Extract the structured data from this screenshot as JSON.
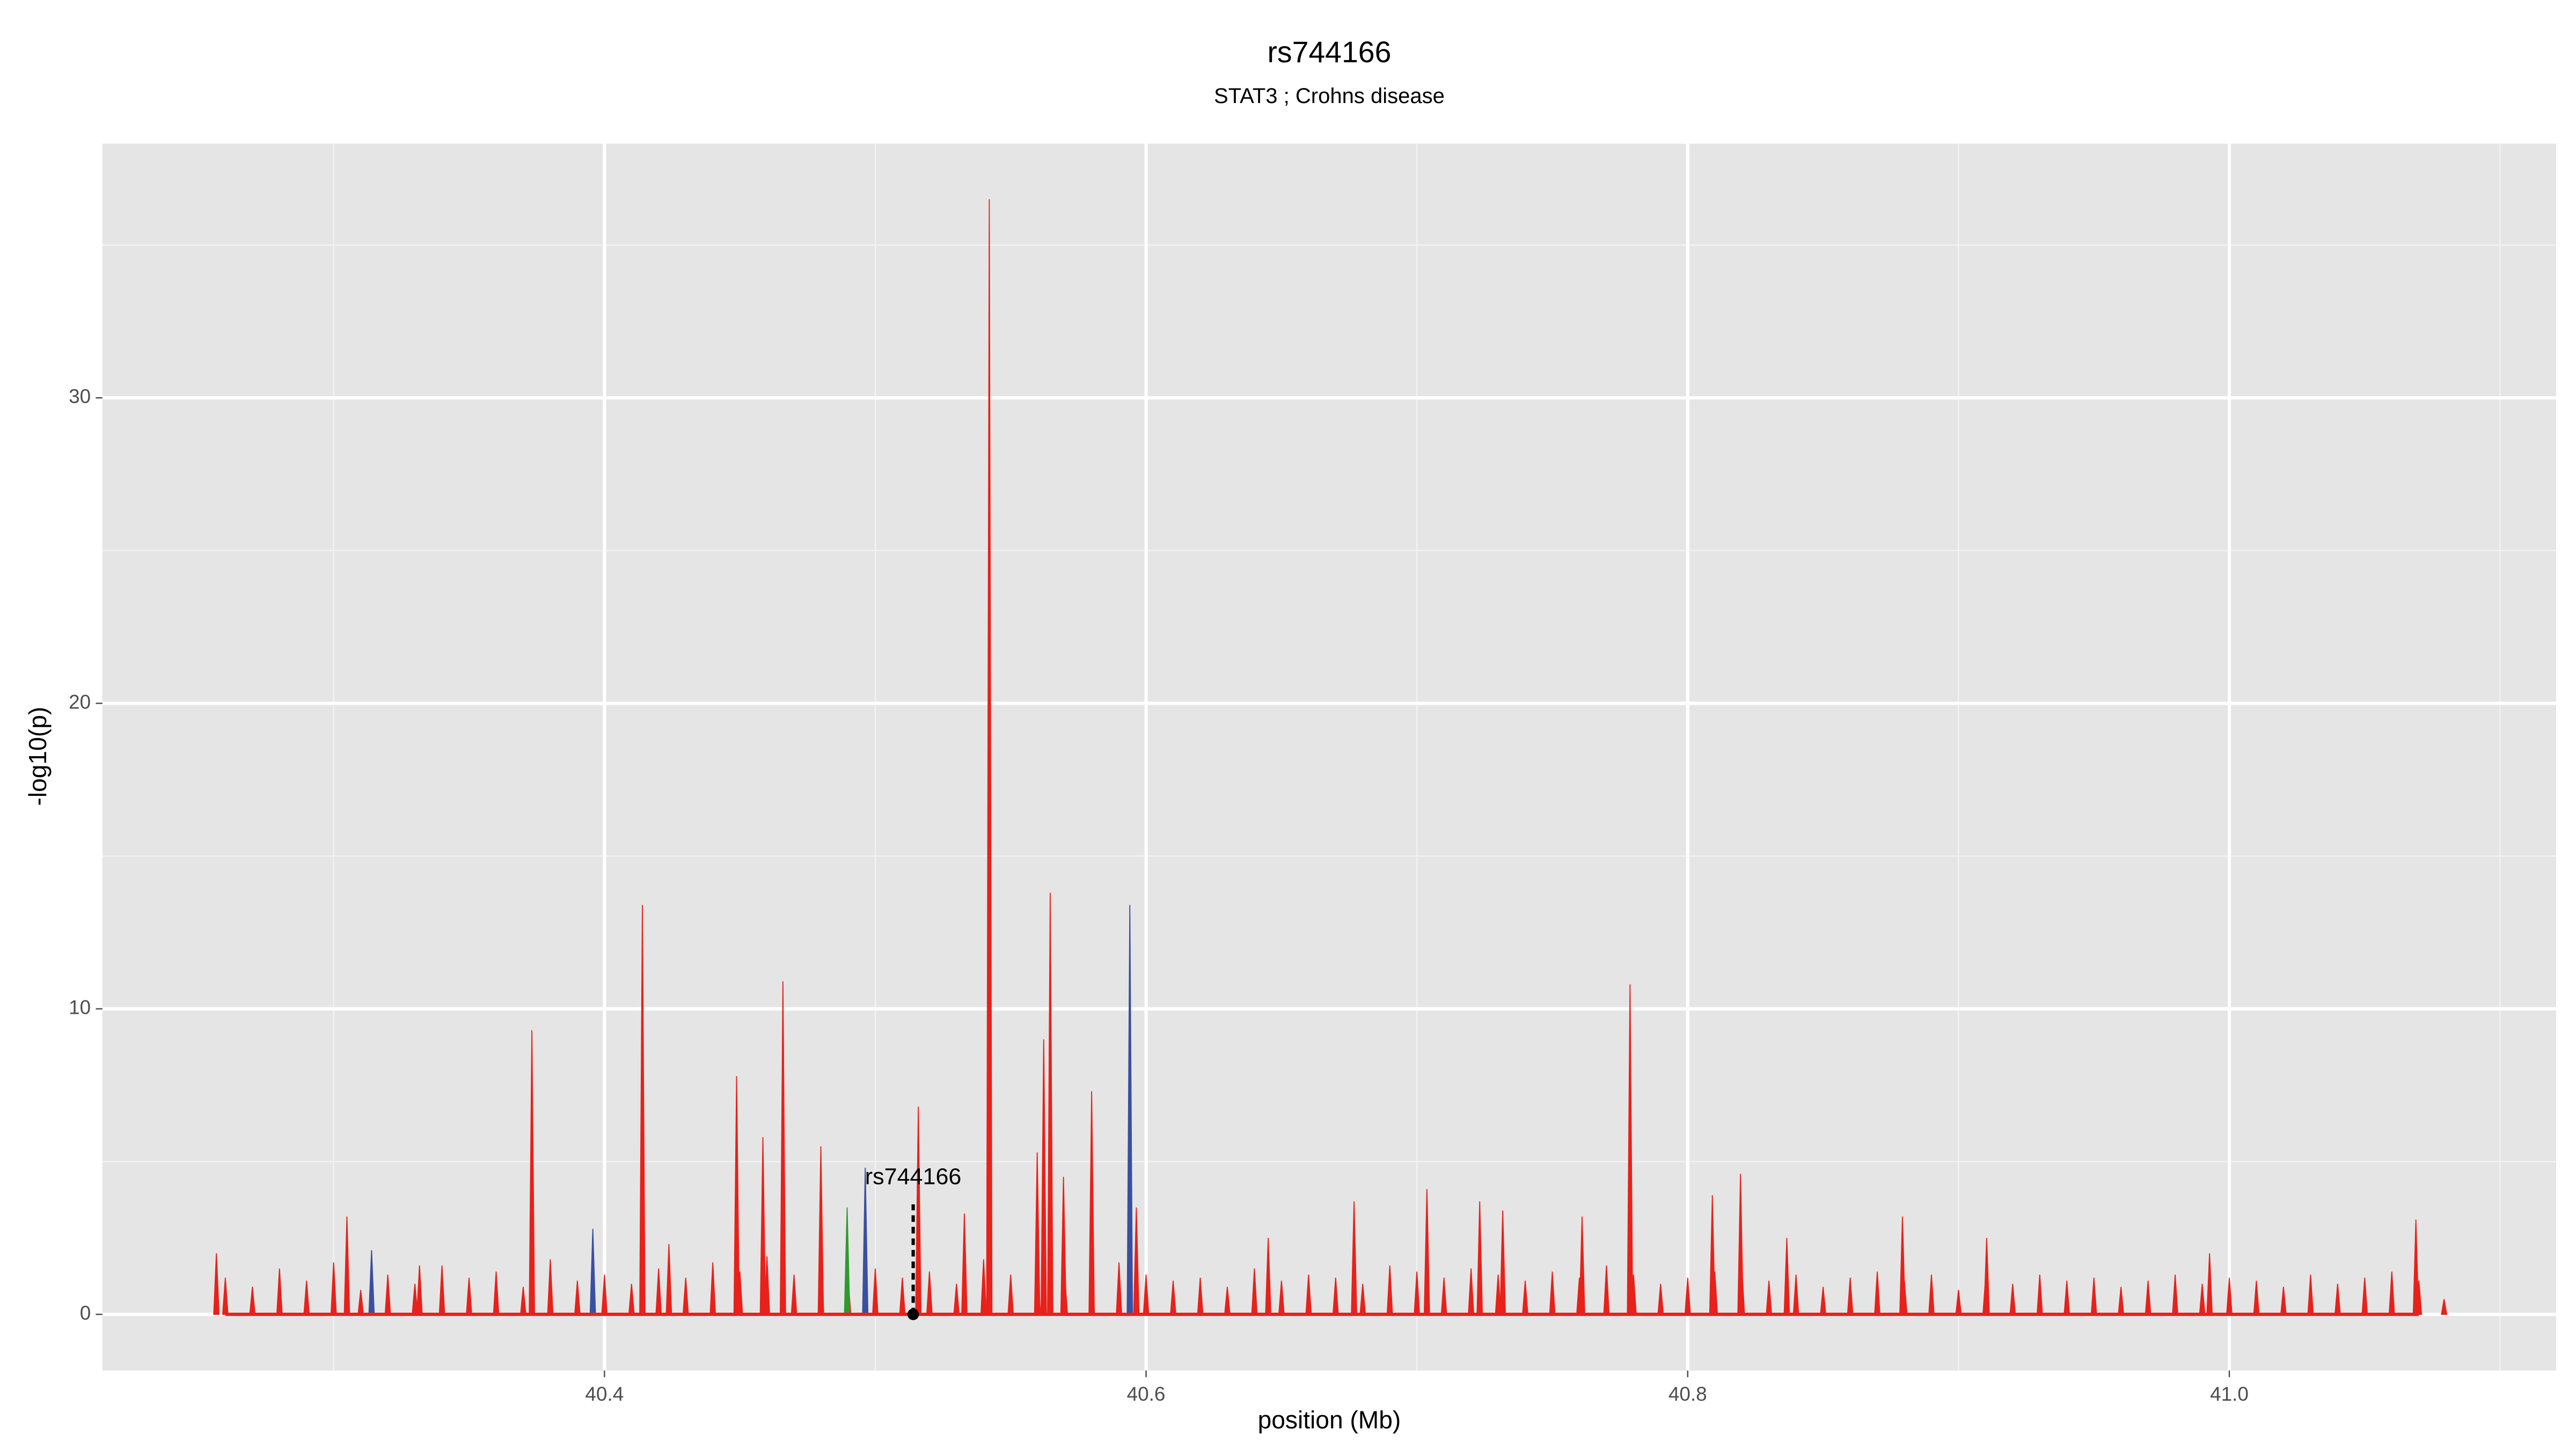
{
  "chart_data": {
    "type": "spike",
    "title": "rs744166",
    "subtitle": "STAT3 ; Crohns disease",
    "xlabel": "position (Mb)",
    "ylabel": "-log10(p)",
    "xlim": [
      40.2146,
      41.1207
    ],
    "ylim": [
      -1.84,
      38.32
    ],
    "xticks": [
      40.4,
      40.6,
      40.8,
      {
        "value": 41,
        "label": "41.0"
      }
    ],
    "yticks": [
      0,
      10,
      20,
      30
    ],
    "xminor": [
      40.3,
      40.5,
      40.7,
      40.9,
      41.1
    ],
    "yminor": [
      5,
      15,
      25,
      35
    ],
    "grid": true,
    "annotation": {
      "text": "rs744166",
      "x": 40.514,
      "y": 3.6
    },
    "series": [
      {
        "color": "#e8211a",
        "x": [
          40.26,
          40.27,
          40.28,
          40.29,
          40.3,
          40.31,
          40.32,
          40.33,
          40.34,
          40.35,
          40.36,
          40.37,
          40.38,
          40.39,
          40.4,
          40.41,
          40.42,
          40.43,
          40.44,
          40.45,
          40.46,
          40.47,
          40.48,
          40.49,
          40.5,
          40.51,
          40.52,
          40.53,
          40.54,
          40.55,
          40.56,
          40.57,
          40.58,
          40.59,
          40.6,
          40.61,
          40.62,
          40.63,
          40.64,
          40.65,
          40.66,
          40.67,
          40.68,
          40.69,
          40.7,
          40.71,
          40.72,
          40.73,
          40.74,
          40.75,
          40.76,
          40.77,
          40.78,
          40.79,
          40.8,
          40.81,
          40.82,
          40.83,
          40.84,
          40.85,
          40.86,
          40.87,
          40.88,
          40.89,
          40.9,
          40.91,
          40.92,
          40.93,
          40.94,
          40.95,
          40.96,
          40.97,
          40.98,
          40.99,
          41.0,
          41.01,
          41.02,
          41.03,
          41.04,
          41.05,
          41.06,
          41.07
        ],
        "values": [
          1.2,
          0.9,
          1.5,
          1.1,
          1.7,
          0.8,
          1.3,
          1.0,
          1.6,
          1.2,
          1.4,
          0.9,
          1.8,
          1.1,
          1.3,
          1.0,
          1.5,
          1.2,
          1.7,
          1.4,
          1.9,
          1.3,
          1.6,
          1.1,
          1.5,
          1.2,
          1.4,
          1.0,
          1.8,
          1.3,
          1.6,
          1.2,
          1.4,
          1.7,
          1.3,
          1.1,
          1.2,
          0.9,
          1.5,
          1.1,
          1.3,
          1.2,
          1.0,
          1.6,
          1.4,
          1.2,
          1.5,
          1.3,
          1.1,
          1.4,
          1.2,
          1.6,
          1.3,
          1.0,
          1.2,
          1.4,
          1.5,
          1.1,
          1.3,
          0.9,
          1.2,
          1.4,
          1.1,
          1.3,
          0.8,
          1.2,
          1.0,
          1.3,
          1.1,
          1.2,
          0.9,
          1.1,
          1.3,
          1.0,
          1.2,
          1.1,
          0.9,
          1.3,
          1.0,
          1.2,
          1.4,
          1.1
        ]
      },
      {
        "color": "#e8211a",
        "x": [
          40.2567,
          40.3049,
          40.3317,
          40.3732,
          40.414,
          40.4238,
          40.4488,
          40.4585,
          40.4659,
          40.4799,
          40.5159,
          40.5329,
          40.5421,
          40.5598,
          40.5622,
          40.5646,
          40.5695,
          40.5799,
          40.5964,
          40.6451,
          40.6768,
          40.7037,
          40.7232,
          40.7317,
          40.761,
          40.7787,
          40.8091,
          40.8195,
          40.8366,
          40.8793,
          40.9104,
          40.9927,
          41.0689,
          41.0793
        ],
        "values": [
          2.0,
          3.2,
          1.6,
          9.3,
          13.4,
          2.3,
          7.8,
          5.8,
          10.9,
          5.5,
          6.8,
          3.3,
          36.5,
          5.3,
          9.0,
          13.8,
          4.5,
          7.3,
          3.5,
          2.5,
          3.7,
          4.1,
          3.7,
          3.4,
          3.2,
          10.8,
          3.9,
          4.6,
          2.5,
          3.2,
          2.5,
          2.0,
          3.1,
          0.5
        ]
      },
      {
        "color": "#3a4fa0",
        "x": [
          40.314,
          40.3957,
          40.4963,
          40.594
        ],
        "values": [
          2.1,
          2.8,
          4.8,
          13.4
        ]
      },
      {
        "color": "#2e9a2e",
        "x": [
          40.4896
        ],
        "values": [
          3.5
        ]
      }
    ]
  }
}
